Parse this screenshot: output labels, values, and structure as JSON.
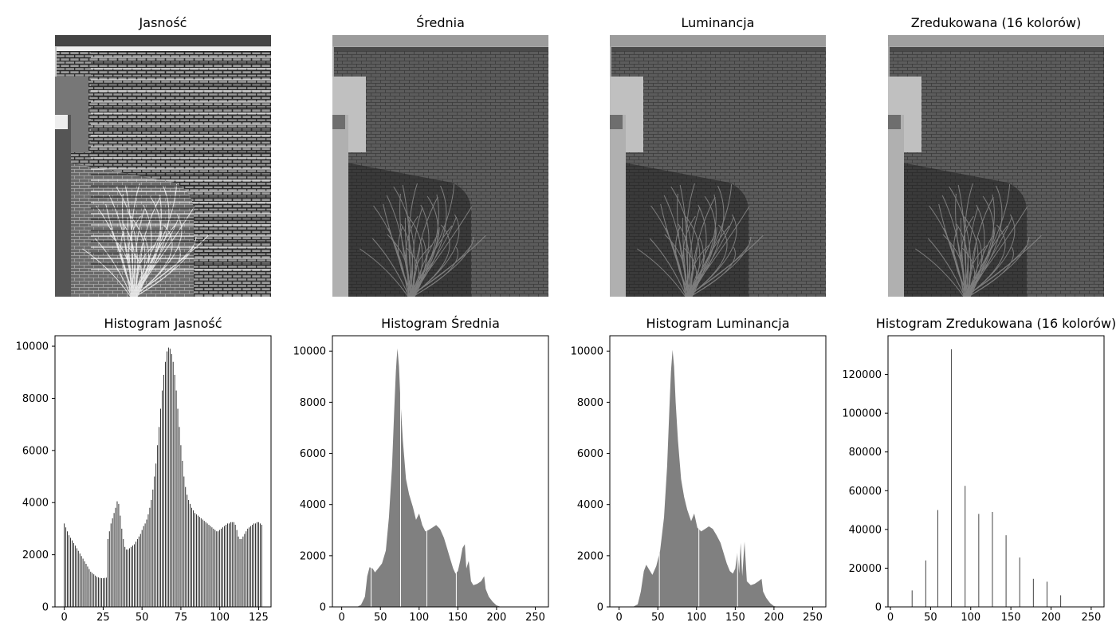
{
  "figure": {
    "images": [
      {
        "title": "Jasność",
        "style": "bitplane"
      },
      {
        "title": "Średnia",
        "style": "gray"
      },
      {
        "title": "Luminancja",
        "style": "gray"
      },
      {
        "title": "Zredukowana (16 kolorów)",
        "style": "posterized"
      }
    ],
    "colors": {
      "bar": "#808080",
      "axes": "#000000",
      "background": "#ffffff"
    }
  },
  "chart_data": [
    {
      "type": "bar",
      "title": "Histogram Jasność",
      "xlim": [
        -6,
        133
      ],
      "ylim": [
        0,
        10400
      ],
      "xticks": [
        0,
        25,
        50,
        75,
        100,
        125
      ],
      "yticks": [
        0,
        2000,
        4000,
        6000,
        8000,
        10000
      ],
      "bar_values_every_unit_from_0_to_127": [
        3200,
        3050,
        2900,
        2750,
        2650,
        2550,
        2450,
        2350,
        2250,
        2150,
        2050,
        1950,
        1850,
        1750,
        1650,
        1550,
        1450,
        1350,
        1300,
        1250,
        1200,
        1150,
        1130,
        1110,
        1100,
        1100,
        1110,
        1120,
        2600,
        2900,
        3200,
        3400,
        3600,
        3800,
        4050,
        3950,
        3500,
        3000,
        2600,
        2300,
        2200,
        2200,
        2250,
        2300,
        2350,
        2400,
        2500,
        2600,
        2700,
        2800,
        2950,
        3100,
        3200,
        3350,
        3550,
        3800,
        4100,
        4500,
        5000,
        5500,
        6200,
        6900,
        7600,
        8300,
        8900,
        9400,
        9800,
        9950,
        9900,
        9700,
        9400,
        8900,
        8300,
        7600,
        6900,
        6200,
        5600,
        5000,
        4600,
        4300,
        4100,
        3950,
        3800,
        3700,
        3600,
        3550,
        3500,
        3450,
        3400,
        3350,
        3300,
        3250,
        3200,
        3150,
        3100,
        3050,
        3000,
        2950,
        2900,
        2900,
        2950,
        3000,
        3050,
        3100,
        3150,
        3200,
        3200,
        3250,
        3250,
        3250,
        3150,
        2950,
        2700,
        2600,
        2600,
        2700,
        2800,
        2900,
        3000,
        3050,
        3100,
        3150,
        3200,
        3200,
        3250,
        3250,
        3200,
        3150
      ]
    },
    {
      "type": "area",
      "title": "Histogram Średnia",
      "xlim": [
        -12,
        267
      ],
      "ylim": [
        0,
        10600
      ],
      "xticks": [
        0,
        50,
        100,
        150,
        200,
        250
      ],
      "yticks": [
        0,
        2000,
        4000,
        6000,
        8000,
        10000
      ],
      "points": [
        [
          20,
          0
        ],
        [
          25,
          80
        ],
        [
          30,
          400
        ],
        [
          33,
          1200
        ],
        [
          36,
          1550
        ],
        [
          40,
          1500
        ],
        [
          43,
          1350
        ],
        [
          47,
          1500
        ],
        [
          52,
          1700
        ],
        [
          57,
          2200
        ],
        [
          61,
          3500
        ],
        [
          65,
          5500
        ],
        [
          68,
          7800
        ],
        [
          70,
          9200
        ],
        [
          71,
          9700
        ],
        [
          72,
          10100
        ],
        [
          74,
          9400
        ],
        [
          76,
          8000
        ],
        [
          79,
          6500
        ],
        [
          83,
          5000
        ],
        [
          87,
          4400
        ],
        [
          92,
          3900
        ],
        [
          96,
          3400
        ],
        [
          100,
          3650
        ],
        [
          104,
          3200
        ],
        [
          108,
          2950
        ],
        [
          112,
          3000
        ],
        [
          117,
          3100
        ],
        [
          122,
          3200
        ],
        [
          127,
          3050
        ],
        [
          132,
          2700
        ],
        [
          136,
          2300
        ],
        [
          140,
          1900
        ],
        [
          144,
          1500
        ],
        [
          147,
          1300
        ],
        [
          150,
          1400
        ],
        [
          153,
          1800
        ],
        [
          156,
          2300
        ],
        [
          159,
          2450
        ],
        [
          161,
          1500
        ],
        [
          164,
          1800
        ],
        [
          167,
          1000
        ],
        [
          170,
          850
        ],
        [
          175,
          900
        ],
        [
          180,
          1000
        ],
        [
          184,
          1200
        ],
        [
          186,
          700
        ],
        [
          190,
          400
        ],
        [
          195,
          200
        ],
        [
          200,
          60
        ],
        [
          205,
          10
        ],
        [
          210,
          0
        ]
      ],
      "white_gaps_x": [
        38,
        76,
        110,
        148
      ]
    },
    {
      "type": "area",
      "title": "Histogram Luminancja",
      "xlim": [
        -12,
        267
      ],
      "ylim": [
        0,
        10600
      ],
      "xticks": [
        0,
        50,
        100,
        150,
        200,
        250
      ],
      "yticks": [
        0,
        2000,
        4000,
        6000,
        8000,
        10000
      ],
      "points": [
        [
          18,
          0
        ],
        [
          24,
          100
        ],
        [
          28,
          600
        ],
        [
          32,
          1400
        ],
        [
          35,
          1650
        ],
        [
          39,
          1450
        ],
        [
          43,
          1250
        ],
        [
          48,
          1600
        ],
        [
          53,
          2200
        ],
        [
          58,
          3500
        ],
        [
          62,
          5500
        ],
        [
          65,
          7800
        ],
        [
          67,
          9200
        ],
        [
          69,
          10050
        ],
        [
          71,
          9400
        ],
        [
          73,
          8000
        ],
        [
          76,
          6500
        ],
        [
          80,
          5000
        ],
        [
          84,
          4300
        ],
        [
          88,
          3800
        ],
        [
          93,
          3350
        ],
        [
          97,
          3650
        ],
        [
          101,
          3100
        ],
        [
          106,
          2950
        ],
        [
          111,
          3050
        ],
        [
          116,
          3150
        ],
        [
          121,
          3050
        ],
        [
          126,
          2800
        ],
        [
          131,
          2500
        ],
        [
          135,
          2100
        ],
        [
          139,
          1700
        ],
        [
          143,
          1400
        ],
        [
          147,
          1300
        ],
        [
          150,
          1500
        ],
        [
          153,
          2200
        ],
        [
          155,
          1300
        ],
        [
          157,
          2500
        ],
        [
          159,
          1200
        ],
        [
          162,
          2550
        ],
        [
          165,
          1000
        ],
        [
          170,
          850
        ],
        [
          175,
          900
        ],
        [
          180,
          1000
        ],
        [
          184,
          1100
        ],
        [
          186,
          600
        ],
        [
          190,
          350
        ],
        [
          195,
          150
        ],
        [
          200,
          30
        ],
        [
          205,
          0
        ]
      ],
      "white_gaps_x": [
        52,
        103,
        153
      ]
    },
    {
      "type": "bar",
      "title": "Histogram Zredukowana (16 kolorów)",
      "xlim": [
        -3,
        266
      ],
      "ylim": [
        0,
        140000
      ],
      "xticks": [
        0,
        50,
        100,
        150,
        200,
        250
      ],
      "yticks": [
        0,
        20000,
        40000,
        60000,
        80000,
        100000,
        120000
      ],
      "x": [
        27,
        44,
        59,
        76,
        93,
        110,
        127,
        144,
        161,
        178,
        195,
        212
      ],
      "values": [
        8500,
        24000,
        50000,
        133000,
        62500,
        48000,
        49000,
        37000,
        25500,
        14500,
        13000,
        6000
      ]
    }
  ]
}
